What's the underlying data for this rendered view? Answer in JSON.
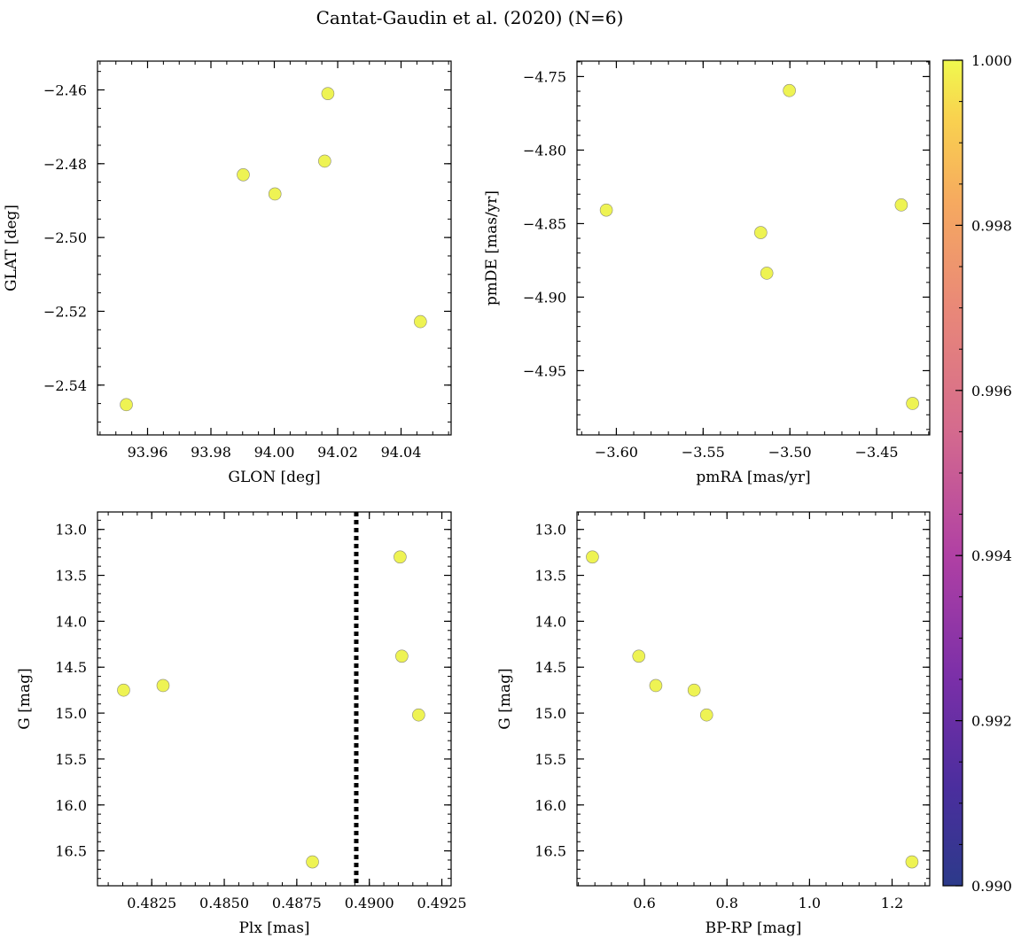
{
  "chart_data": {
    "title": "Cantat-Gaudin et al. (2020) (N=6)",
    "panels": [
      {
        "type": "scatter",
        "xlabel": "GLON [deg]",
        "ylabel": "GLAT [deg]",
        "xlim": [
          93.9442,
          94.0558
        ],
        "ylim": [
          -2.5535,
          -2.4522
        ],
        "yinvert": false,
        "xticks": [
          93.96,
          93.98,
          94.0,
          94.02,
          94.04
        ],
        "xtick_labels": [
          "93.96",
          "93.98",
          "94.00",
          "94.02",
          "94.04"
        ],
        "xminor": 0.005,
        "yticks": [
          -2.46,
          -2.48,
          -2.5,
          -2.52,
          -2.54
        ],
        "ytick_labels": [
          "−2.46",
          "−2.48",
          "−2.50",
          "−2.52",
          "−2.54"
        ],
        "yminor": 0.005,
        "x": [
          93.9533,
          93.9902,
          94.0002,
          94.0159,
          94.0169,
          94.0461
        ],
        "y": [
          -2.5453,
          -2.483,
          -2.4882,
          -2.4793,
          -2.461,
          -2.5228
        ]
      },
      {
        "type": "scatter",
        "xlabel": "pmRA [mas/yr]",
        "ylabel": "pmDE [mas/yr]",
        "xlim": [
          -3.6227,
          -3.4194
        ],
        "ylim": [
          -4.9937,
          -4.7395
        ],
        "yinvert": false,
        "xticks": [
          -3.6,
          -3.55,
          -3.5,
          -3.45
        ],
        "xtick_labels": [
          "−3.60",
          "−3.55",
          "−3.50",
          "−3.45"
        ],
        "xminor": 0.01,
        "yticks": [
          -4.75,
          -4.8,
          -4.85,
          -4.9,
          -4.95
        ],
        "ytick_labels": [
          "−4.75",
          "−4.80",
          "−4.85",
          "−4.90",
          "−4.95"
        ],
        "yminor": 0.01,
        "x": [
          -3.6058,
          -3.5168,
          -3.5133,
          -3.5003,
          -3.4358,
          -3.4293
        ],
        "y": [
          -4.8408,
          -4.8561,
          -4.8837,
          -4.7595,
          -4.8373,
          -4.9723
        ]
      },
      {
        "type": "scatter",
        "xlabel": "Plx [mas]",
        "ylabel": "G [mag]",
        "xlim": [
          0.48063,
          0.49282
        ],
        "ylim": [
          16.88,
          12.81
        ],
        "yinvert": true,
        "xticks": [
          0.4825,
          0.485,
          0.4875,
          0.49,
          0.4925
        ],
        "xtick_labels": [
          "0.4825",
          "0.4850",
          "0.4875",
          "0.4900",
          "0.4925"
        ],
        "xminor": 0.0005,
        "yticks": [
          13.0,
          13.5,
          14.0,
          14.5,
          15.0,
          15.5,
          16.0,
          16.5
        ],
        "ytick_labels": [
          "13.0",
          "13.5",
          "14.0",
          "14.5",
          "15.0",
          "15.5",
          "16.0",
          "16.5"
        ],
        "yminor": 0.1,
        "x": [
          0.48153,
          0.48289,
          0.48804,
          0.49106,
          0.49112,
          0.4917
        ],
        "y": [
          14.75,
          14.7,
          16.62,
          13.3,
          14.38,
          15.02
        ],
        "vline": {
          "x": 0.48955,
          "style": "dotted"
        }
      },
      {
        "type": "scatter",
        "xlabel": "BP-RP [mag]",
        "ylabel": "G [mag]",
        "xlim": [
          0.4366,
          1.2912
        ],
        "ylim": [
          16.88,
          12.81
        ],
        "yinvert": true,
        "xticks": [
          0.6,
          0.8,
          1.0,
          1.2
        ],
        "xtick_labels": [
          "0.6",
          "0.8",
          "1.0",
          "1.2"
        ],
        "xminor": 0.04,
        "yticks": [
          13.0,
          13.5,
          14.0,
          14.5,
          15.0,
          15.5,
          16.0,
          16.5
        ],
        "ytick_labels": [
          "13.0",
          "13.5",
          "14.0",
          "14.5",
          "15.0",
          "15.5",
          "16.0",
          "16.5"
        ],
        "yminor": 0.1,
        "x": [
          0.474,
          0.5864,
          0.6276,
          0.7204,
          0.7506,
          1.2481
        ],
        "y": [
          13.3,
          14.38,
          14.7,
          14.75,
          15.02,
          16.62
        ]
      }
    ],
    "colorbar": {
      "range": [
        0.99,
        1.0
      ],
      "ticks": [
        0.99,
        0.992,
        0.994,
        0.996,
        0.998,
        1.0
      ],
      "tick_labels": [
        "0.990",
        "0.992",
        "0.994",
        "0.996",
        "0.998",
        "1.000"
      ],
      "minor": 0.0005,
      "colormap": "plasma"
    },
    "colors": {
      "point_fill": "#eef353",
      "point_edge": "#8a8a7a",
      "vline": "#000000"
    }
  }
}
